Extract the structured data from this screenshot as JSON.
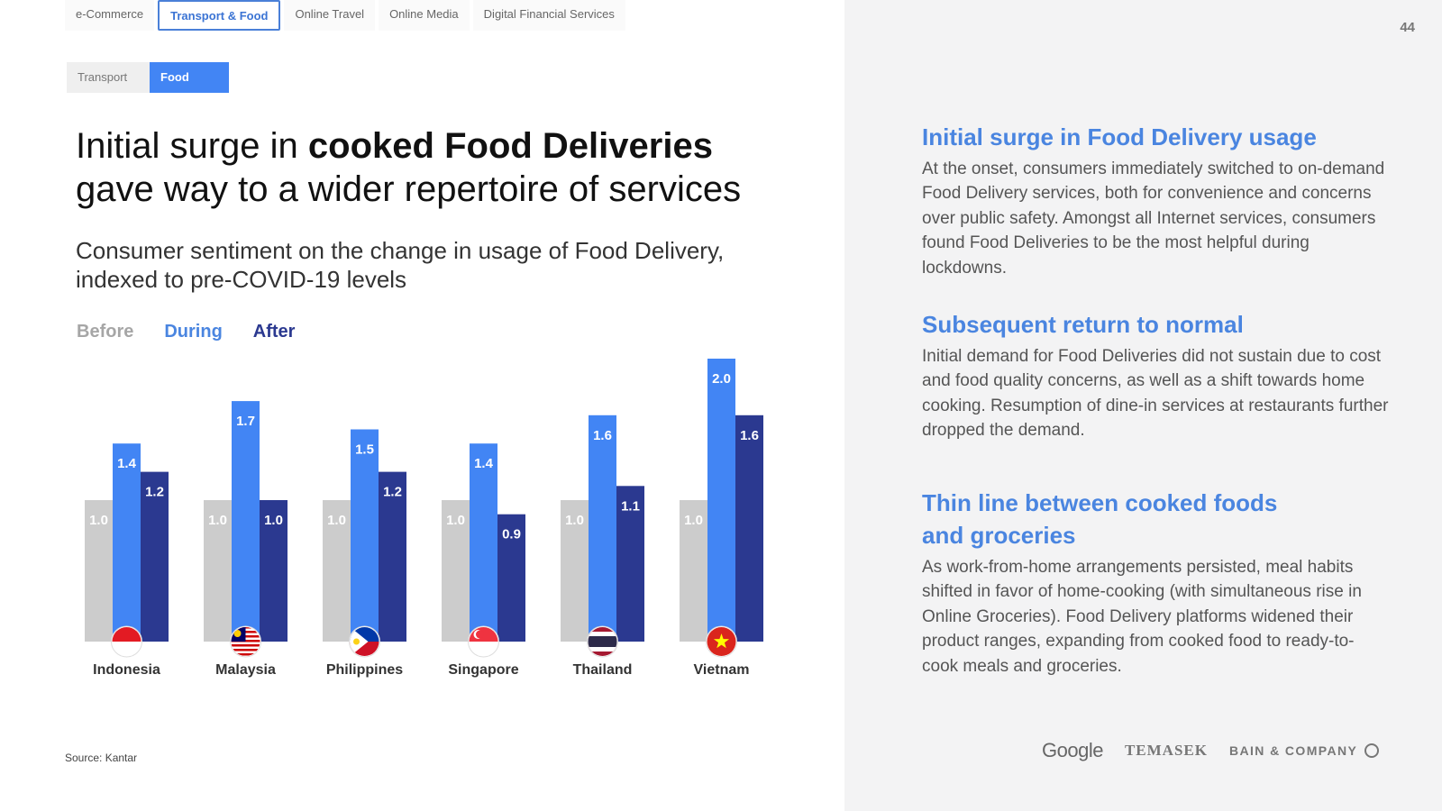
{
  "tabs": [
    {
      "label": "e-Commerce",
      "active": false
    },
    {
      "label": "Transport & Food",
      "active": true
    },
    {
      "label": "Online Travel",
      "active": false
    },
    {
      "label": "Online Media",
      "active": false
    },
    {
      "label": "Digital Financial Services",
      "active": false
    }
  ],
  "subtabs": {
    "transport": "Transport",
    "food": "Food"
  },
  "headline": {
    "part1": "Initial surge in ",
    "bold": "cooked Food Deliveries",
    "part2": " gave way to a wider repertoire of services"
  },
  "subtitle": "Consumer sentiment on the change in usage of Food Delivery, indexed to pre-COVID-19 levels",
  "legend": {
    "before": "Before",
    "during": "During",
    "after": "After"
  },
  "colors": {
    "before": "#cccccc",
    "during": "#4285f4",
    "after": "#2b3990",
    "accent": "#4a85e0"
  },
  "chart_data": {
    "type": "bar",
    "categories": [
      "Indonesia",
      "Malaysia",
      "Philippines",
      "Singapore",
      "Thailand",
      "Vietnam"
    ],
    "series": [
      {
        "name": "Before",
        "values": [
          1.0,
          1.0,
          1.0,
          1.0,
          1.0,
          1.0
        ]
      },
      {
        "name": "During",
        "values": [
          1.4,
          1.7,
          1.5,
          1.4,
          1.6,
          2.0
        ]
      },
      {
        "name": "After",
        "values": [
          1.2,
          1.0,
          1.2,
          0.9,
          1.1,
          1.6
        ]
      }
    ],
    "flags": [
      "indonesia-flag-icon",
      "malaysia-flag-icon",
      "philippines-flag-icon",
      "singapore-flag-icon",
      "thailand-flag-icon",
      "vietnam-flag-icon"
    ],
    "ylim": [
      0,
      2.0
    ],
    "legend_position": "top-left",
    "grid": false
  },
  "source": "Source: Kantar",
  "page_number": "44",
  "sections": [
    {
      "title": "Initial surge in Food Delivery usage",
      "body": "At the onset, consumers immediately switched to on-demand Food Delivery services, both for convenience and concerns over public safety. Amongst all Internet services, consumers found Food Deliveries to be the most helpful during lockdowns."
    },
    {
      "title": "Subsequent return to normal",
      "body": "Initial demand for Food Deliveries did not sustain due to cost and food quality concerns, as well as a shift towards home cooking. Resumption of dine-in services at restaurants further dropped the demand."
    },
    {
      "title": "Thin line between cooked foods and groceries",
      "body": "As work-from-home arrangements persisted, meal habits shifted in favor of home-cooking (with simultaneous rise in Online Groceries). Food Delivery platforms widened their product ranges, expanding from cooked food to ready-to-cook meals and groceries."
    }
  ],
  "logos": {
    "google": "Google",
    "temasek": "TEMASEK",
    "bain": "BAIN & COMPANY"
  }
}
